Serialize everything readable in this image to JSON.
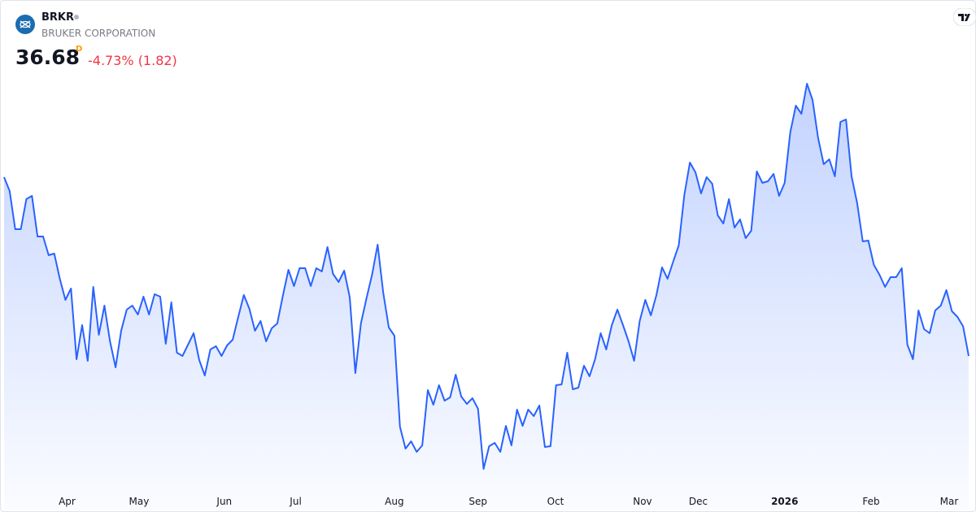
{
  "header": {
    "symbol": "BRKR",
    "name": "BRUKER CORPORATION",
    "price": "36.68",
    "interval": "D",
    "change": "-4.73% (1.82)"
  },
  "chart_data": {
    "type": "area",
    "color": "#2962ff",
    "values": [
      47.68,
      46.83,
      44.48,
      44.48,
      46.33,
      46.53,
      44.03,
      44.03,
      42.88,
      42.98,
      41.43,
      40.13,
      40.83,
      36.48,
      38.58,
      36.38,
      40.93,
      37.98,
      39.78,
      37.58,
      35.98,
      38.23,
      39.53,
      39.78,
      39.23,
      40.33,
      39.23,
      40.48,
      40.33,
      37.43,
      39.98,
      36.88,
      36.68,
      37.38,
      38.08,
      36.43,
      35.48,
      37.08,
      37.28,
      36.68,
      37.33,
      37.68,
      39.08,
      40.43,
      39.58,
      38.23,
      38.83,
      37.58,
      38.38,
      38.68,
      40.38,
      41.98,
      40.98,
      42.08,
      42.08,
      40.98,
      42.08,
      41.88,
      43.38,
      41.73,
      41.23,
      41.93,
      40.28,
      35.63,
      38.68,
      40.23,
      41.68,
      43.53,
      40.58,
      38.43,
      37.93,
      32.33,
      30.98,
      31.43,
      30.78,
      31.18,
      34.58,
      33.68,
      34.88,
      33.93,
      34.13,
      35.53,
      34.18,
      33.73,
      34.08,
      33.43,
      29.73,
      31.13,
      31.33,
      30.78,
      32.38,
      31.18,
      33.38,
      32.38,
      33.38,
      32.98,
      33.63,
      31.08,
      31.13,
      34.88,
      34.93,
      36.88,
      34.63,
      34.73,
      36.08,
      35.43,
      36.48,
      38.08,
      37.08,
      38.58,
      39.53,
      38.58,
      37.58,
      36.38,
      38.83,
      40.13,
      39.18,
      40.43,
      42.13,
      41.43,
      42.48,
      43.48,
      46.58,
      48.58,
      47.98,
      46.68,
      47.68,
      47.28,
      45.33,
      44.83,
      46.33,
      44.58,
      45.08,
      43.93,
      44.38,
      48.03,
      47.33,
      47.43,
      47.88,
      46.53,
      47.33,
      50.43,
      52.08,
      51.58,
      53.43,
      52.43,
      50.08,
      48.48,
      48.78,
      47.73,
      51.08,
      51.23,
      47.73,
      46.08,
      43.73,
      43.78,
      42.28,
      41.68,
      40.93,
      41.53,
      41.53,
      42.08,
      37.38,
      36.48,
      39.48,
      38.33,
      38.08,
      39.48,
      39.78,
      40.73,
      39.43,
      39.08,
      38.5,
      36.68
    ],
    "xticks": [
      {
        "value": 11.3,
        "label": "Apr"
      },
      {
        "value": 24.2,
        "label": "May"
      },
      {
        "value": 39.5,
        "label": "Jun"
      },
      {
        "value": 52.3,
        "label": "Jul"
      },
      {
        "value": 70,
        "label": "Aug"
      },
      {
        "value": 85,
        "label": "Sep"
      },
      {
        "value": 98.9,
        "label": "Oct"
      },
      {
        "value": 114.5,
        "label": "Nov"
      },
      {
        "value": 124.5,
        "label": "Dec"
      },
      {
        "value": 140,
        "label": "2026"
      },
      {
        "value": 155.5,
        "label": "Feb"
      },
      {
        "value": 169.5,
        "label": "Mar"
      }
    ]
  }
}
